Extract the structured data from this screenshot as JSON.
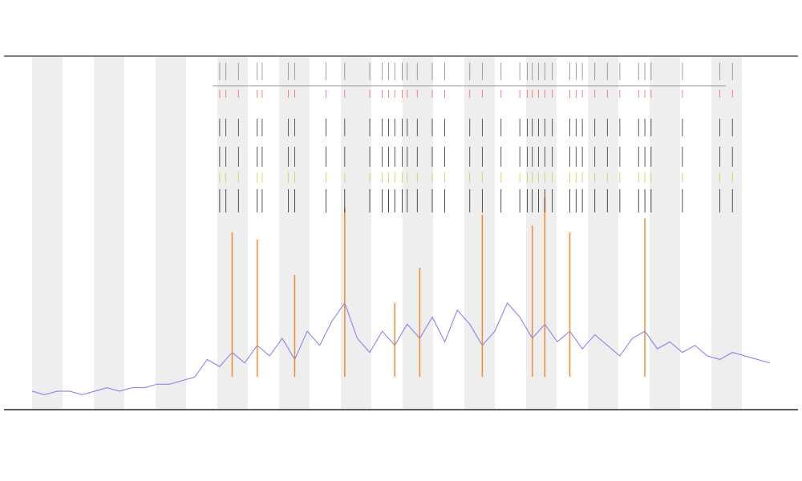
{
  "chart_data": {
    "type": "line",
    "xlim": [
      0,
      59
    ],
    "ylim": [
      0,
      100
    ],
    "series": [
      {
        "color": "#7b7bf0",
        "x": [
          0,
          1,
          2,
          3,
          4,
          5,
          6,
          7,
          8,
          9,
          10,
          11,
          12,
          13,
          14,
          15,
          16,
          17,
          18,
          19,
          20,
          21,
          22,
          23,
          24,
          25,
          26,
          27,
          28,
          29,
          30,
          31,
          32,
          33,
          34,
          35,
          36,
          37,
          38,
          39,
          40,
          41,
          42,
          43,
          44,
          45,
          46,
          47,
          48,
          49,
          50,
          51,
          52,
          53,
          54,
          55,
          56,
          57,
          58,
          59
        ],
        "values": [
          5,
          4,
          5,
          5,
          4,
          5,
          6,
          5,
          6,
          6,
          7,
          7,
          8,
          9,
          14,
          12,
          16,
          13,
          18,
          15,
          20,
          14,
          22,
          18,
          25,
          30,
          20,
          16,
          22,
          18,
          24,
          20,
          26,
          19,
          28,
          24,
          18,
          22,
          30,
          26,
          20,
          24,
          19,
          22,
          17,
          21,
          18,
          15,
          20,
          22,
          17,
          19,
          16,
          18,
          15,
          14,
          16,
          15,
          14,
          13
        ]
      },
      {
        "color": "#f08a2c",
        "x": [
          16,
          18,
          21,
          25,
          29,
          31,
          36,
          40,
          41,
          43,
          49
        ],
        "values": [
          50,
          48,
          38,
          57,
          30,
          40,
          55,
          52,
          60,
          50,
          54
        ]
      }
    ],
    "events": [
      15,
      15.5,
      16.5,
      18,
      18.4,
      20.5,
      21,
      23.5,
      25,
      27,
      28,
      28.5,
      29,
      29.6,
      30,
      30.8,
      32,
      33,
      35,
      36,
      37.5,
      39,
      39.6,
      40,
      40.5,
      41,
      41.6,
      43,
      43.5,
      44,
      45,
      46,
      47,
      48.5,
      49,
      49.5,
      52,
      55,
      56
    ]
  }
}
